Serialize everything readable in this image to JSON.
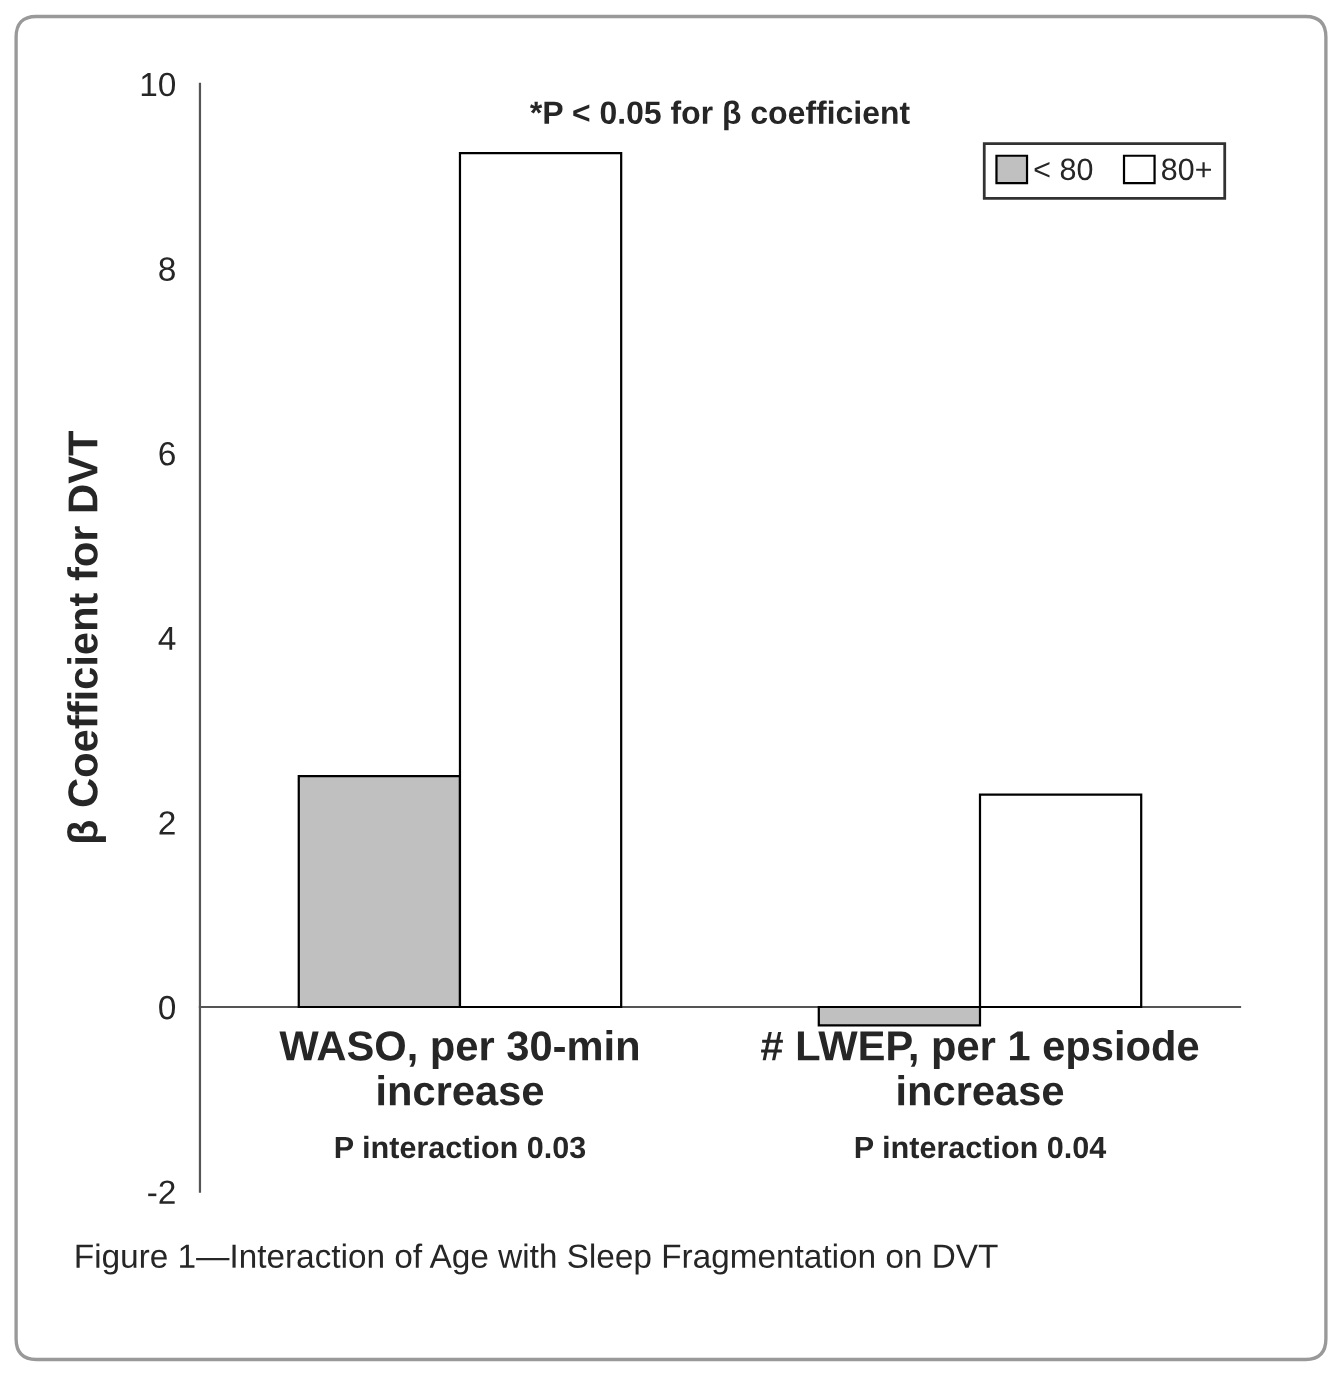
{
  "chart_data": {
    "type": "bar",
    "title": "*P < 0.05 for β coefficient",
    "ylabel": "β Coefficient for DVT",
    "categories": [
      "WASO, per 30-min increase",
      "# LWEP, per 1 epsiode increase"
    ],
    "series": [
      {
        "name": "< 80",
        "color": "#c0c0c0",
        "values": [
          2.5,
          -0.2
        ]
      },
      {
        "name": "80+",
        "color": "#ffffff",
        "values": [
          9.25,
          2.3
        ]
      }
    ],
    "ylim": [
      -2,
      10
    ],
    "yticks": [
      -2,
      0,
      2,
      4,
      6,
      8,
      10
    ],
    "grid": false,
    "legend": "top right",
    "annotations": [
      "P interaction 0.03",
      "P interaction 0.04",
      "Figure 1—Interaction of Age with Sleep Fragmentation on DVT"
    ]
  }
}
